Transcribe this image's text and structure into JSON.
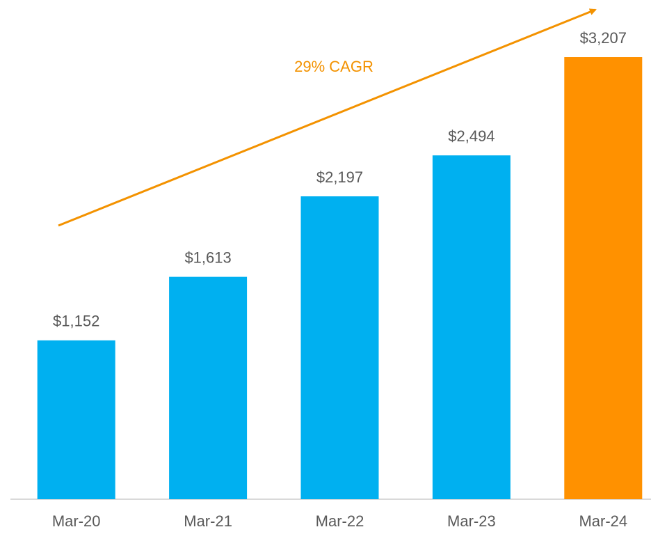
{
  "chart_data": {
    "type": "bar",
    "categories": [
      "Mar-20",
      "Mar-21",
      "Mar-22",
      "Mar-23",
      "Mar-24"
    ],
    "values": [
      1152,
      1613,
      2197,
      2494,
      3207
    ],
    "value_labels": [
      "$1,152",
      "$1,613",
      "$2,197",
      "$2,494",
      "$3,207"
    ],
    "colors": [
      "#00b0f0",
      "#00b0f0",
      "#00b0f0",
      "#00b0f0",
      "#ff9100"
    ],
    "annotation": "29% CAGR",
    "annotation_color": "#f39200"
  }
}
